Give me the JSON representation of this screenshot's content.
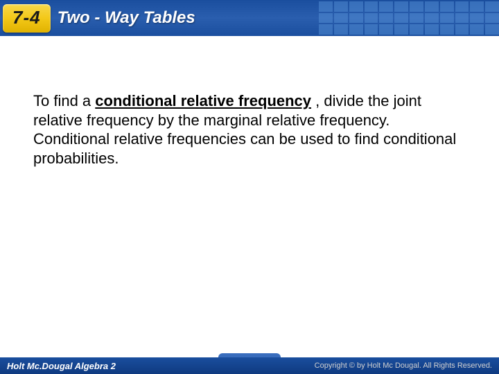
{
  "header": {
    "section_number": "7-4",
    "title": "Two - Way Tables"
  },
  "body": {
    "pre_text": "To find a ",
    "bold_term": "conditional relative frequency",
    "post_text": " , divide the joint relative frequency by the marginal relative frequency. Conditional relative frequencies can be used to find conditional probabilities."
  },
  "footer": {
    "left": "Holt Mc.Dougal Algebra 2",
    "right": "Copyright © by Holt Mc Dougal. All Rights Reserved."
  },
  "colors": {
    "header_bg": "#1a4e9e",
    "section_bg": "#f3c818",
    "body_bg": "#ffffff",
    "text": "#000000",
    "header_text": "#ffffff"
  }
}
